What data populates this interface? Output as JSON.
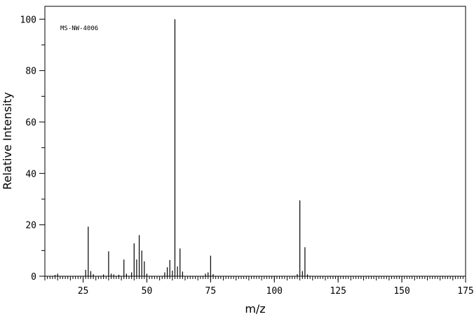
{
  "chart_data": {
    "type": "bar",
    "title": "",
    "annotation": "MS-NW-4006",
    "xlabel": "m/z",
    "ylabel": "Relative Intensity",
    "xlim": [
      10,
      175
    ],
    "ylim": [
      0,
      105
    ],
    "xticks": [
      25,
      50,
      75,
      100,
      125,
      150,
      175
    ],
    "yticks": [
      0,
      20,
      40,
      60,
      80,
      100
    ],
    "grid": false,
    "legend": "none",
    "bar_color": "#000000",
    "peaks": [
      {
        "mz": 14,
        "intensity": 0.5
      },
      {
        "mz": 15,
        "intensity": 1.0
      },
      {
        "mz": 26,
        "intensity": 2.5
      },
      {
        "mz": 27,
        "intensity": 19.3
      },
      {
        "mz": 28,
        "intensity": 2.0
      },
      {
        "mz": 29,
        "intensity": 0.8
      },
      {
        "mz": 33,
        "intensity": 0.7
      },
      {
        "mz": 35,
        "intensity": 9.7
      },
      {
        "mz": 36,
        "intensity": 1.0
      },
      {
        "mz": 37,
        "intensity": 0.7
      },
      {
        "mz": 39,
        "intensity": 0.6
      },
      {
        "mz": 41,
        "intensity": 6.5
      },
      {
        "mz": 42,
        "intensity": 1.0
      },
      {
        "mz": 44,
        "intensity": 1.5
      },
      {
        "mz": 45,
        "intensity": 12.8
      },
      {
        "mz": 46,
        "intensity": 6.5
      },
      {
        "mz": 47,
        "intensity": 16.0
      },
      {
        "mz": 48,
        "intensity": 10.0
      },
      {
        "mz": 49,
        "intensity": 5.8
      },
      {
        "mz": 50,
        "intensity": 1.0
      },
      {
        "mz": 57,
        "intensity": 1.5
      },
      {
        "mz": 58,
        "intensity": 3.5
      },
      {
        "mz": 59,
        "intensity": 6.3
      },
      {
        "mz": 60,
        "intensity": 2.2
      },
      {
        "mz": 61,
        "intensity": 100.0
      },
      {
        "mz": 62,
        "intensity": 3.8
      },
      {
        "mz": 63,
        "intensity": 10.8
      },
      {
        "mz": 64,
        "intensity": 1.8
      },
      {
        "mz": 73,
        "intensity": 1.0
      },
      {
        "mz": 74,
        "intensity": 1.5
      },
      {
        "mz": 75,
        "intensity": 8.0
      },
      {
        "mz": 76,
        "intensity": 0.8
      },
      {
        "mz": 109,
        "intensity": 0.8
      },
      {
        "mz": 110,
        "intensity": 29.5
      },
      {
        "mz": 111,
        "intensity": 2.0
      },
      {
        "mz": 112,
        "intensity": 11.3
      },
      {
        "mz": 113,
        "intensity": 0.7
      }
    ]
  }
}
